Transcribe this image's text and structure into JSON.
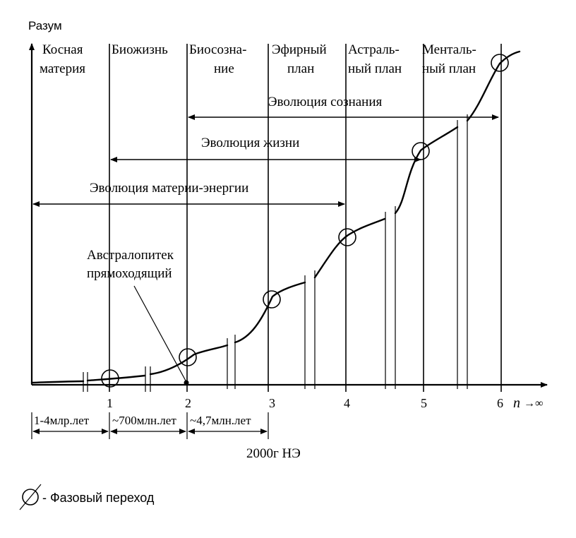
{
  "axis": {
    "y_label": "Разум",
    "x_label": "n",
    "x_inf": "→∞",
    "ticks": [
      "1",
      "2",
      "3",
      "4",
      "5",
      "6"
    ]
  },
  "zones": [
    [
      "Косная",
      "материя"
    ],
    [
      "Биожизнь"
    ],
    [
      "Биосозна-",
      "ние"
    ],
    [
      "Эфирный",
      "план"
    ],
    [
      "Астраль-",
      "ный план"
    ],
    [
      "Менталь-",
      "ный план"
    ]
  ],
  "spans": {
    "consciousness": "Эволюция сознания",
    "life": "Эволюция жизни",
    "matter": "Эволюция материи-энергии"
  },
  "annotation": [
    "Австралопитек",
    "прямоходящий"
  ],
  "durations": [
    "1-4млр.лет",
    "~700млн.лет",
    "~4,7млн.лет"
  ],
  "era": "2000г  НЭ",
  "legend": {
    "label": "- Фазовый переход"
  }
}
